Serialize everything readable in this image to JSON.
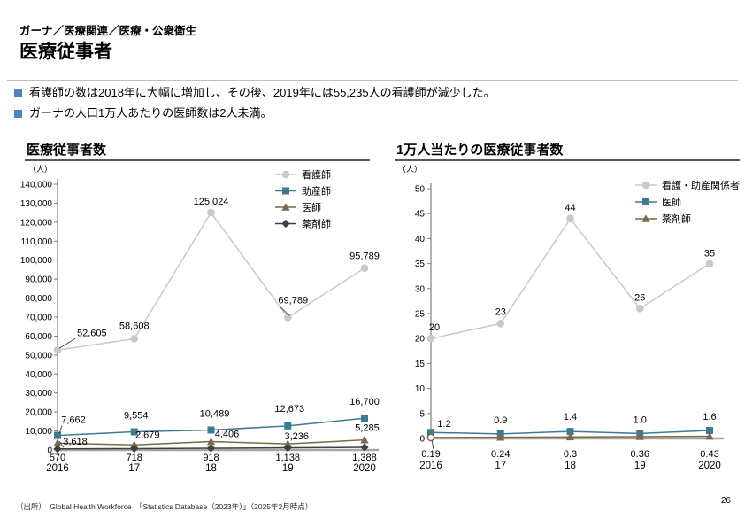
{
  "header": {
    "breadcrumb": "ガーナ／医療関連／医療・公衆衛生",
    "title": "医療従事者"
  },
  "bullets": [
    "看護師の数は2018年に大幅に増加し、その後、2019年には55,235人の看護師が減少した。",
    "ガーナの人口1万人あたりの医師数は2人未満。"
  ],
  "colors": {
    "bullet_square": "#4F81BD",
    "nurse_gray": "#C9C9C9",
    "midwife_teal": "#3D7A94",
    "doctor_olive": "#7A6A45",
    "pharmacist_dark": "#404040",
    "axis_gray": "#A6A6A6"
  },
  "footer": {
    "source": "（出所）　Global Health Workforce　「Statistics Database（2023年）」（2025年2月時点）",
    "page_number": "26"
  },
  "chart_data": [
    {
      "type": "line",
      "title": "医療従事者数",
      "unit_label": "（人）",
      "categories": [
        "2016",
        "17",
        "18",
        "19",
        "2020"
      ],
      "y_axis": {
        "min": 0,
        "max": 140000,
        "step": 10000,
        "grouped": true
      },
      "grid": false,
      "legend_position": "top-right-inside",
      "series": [
        {
          "name": "看護師",
          "color": "#C9C9C9",
          "marker": "circle",
          "values": [
            52605,
            58608,
            125024,
            69789,
            95789
          ],
          "labels": [
            "52,605",
            "58,608",
            "125,024",
            "69,789",
            "95,789"
          ],
          "label_offsets": [
            [
              22,
              -16
            ],
            [
              0,
              -11
            ],
            [
              0,
              -9
            ],
            [
              6,
              -16
            ],
            [
              0,
              -10
            ]
          ],
          "label_anchors": [
            "start",
            "middle",
            "middle",
            "middle",
            "middle"
          ],
          "label_leaders": [
            1,
            0,
            0,
            1,
            0
          ]
        },
        {
          "name": "助産師",
          "color": "#3D7A94",
          "marker": "square",
          "values": [
            7662,
            9554,
            10489,
            12673,
            16700
          ],
          "labels": [
            "7,662",
            "9,554",
            "10,489",
            "12,673",
            "16,700"
          ],
          "label_offsets": [
            [
              18,
              -14
            ],
            [
              2,
              -15
            ],
            [
              4,
              -15
            ],
            [
              2,
              -16
            ],
            [
              0,
              -15
            ]
          ],
          "label_leaders": [
            1,
            0,
            0,
            0,
            0
          ]
        },
        {
          "name": "医師",
          "color": "#7A6A45",
          "marker": "triangle",
          "values": [
            3618,
            2679,
            4406,
            3236,
            5285
          ],
          "labels": [
            "3,618",
            "2,679",
            "4,406",
            "3,236",
            "5,285"
          ],
          "label_offsets": [
            [
              20,
              2
            ],
            [
              15,
              -8
            ],
            [
              18,
              -5
            ],
            [
              10,
              -5
            ],
            [
              3,
              -10
            ]
          ],
          "label_leaders": [
            1,
            0,
            0,
            0,
            0
          ]
        },
        {
          "name": "薬剤師",
          "color": "#404040",
          "marker": "diamond",
          "values": [
            570,
            718,
            918,
            1138,
            1388
          ],
          "labels": [
            "570",
            "718",
            "918",
            "1,138",
            "1,388"
          ],
          "labels_below_axis": true
        }
      ]
    },
    {
      "type": "line",
      "title": "1万人当たりの医療従事者数",
      "unit_label": "（人）",
      "categories": [
        "2016",
        "17",
        "18",
        "19",
        "2020"
      ],
      "y_axis": {
        "min": 0,
        "max": 50,
        "step": 5,
        "grouped": false
      },
      "grid": false,
      "legend_position": "top-right-inside",
      "series": [
        {
          "name": "看護・助産関係者",
          "color": "#C9C9C9",
          "marker": "circle",
          "values": [
            20,
            23,
            44,
            26,
            35
          ],
          "labels": [
            "20",
            "23",
            "44",
            "26",
            "35"
          ],
          "label_offsets": [
            [
              4,
              -9
            ],
            [
              0,
              -10
            ],
            [
              0,
              -9
            ],
            [
              0,
              -9
            ],
            [
              0,
              -8
            ]
          ]
        },
        {
          "name": "医師",
          "color": "#3D7A94",
          "marker": "square",
          "values": [
            1.2,
            0.9,
            1.4,
            1.0,
            1.6
          ],
          "labels": [
            "1.2",
            "0.9",
            "1.4",
            "1.0",
            "1.6"
          ],
          "label_offsets": [
            [
              15,
              -6
            ],
            [
              0,
              -12
            ],
            [
              0,
              -13
            ],
            [
              0,
              -12
            ],
            [
              0,
              -12
            ]
          ],
          "label_leaders": [
            1,
            0,
            0,
            0,
            0
          ]
        },
        {
          "name": "薬剤師",
          "color": "#7A6A45",
          "marker": "triangle",
          "values": [
            0.19,
            0.24,
            0.3,
            0.36,
            0.43
          ],
          "labels": [
            "0.19",
            "0.24",
            "0.3",
            "0.36",
            "0.43"
          ],
          "labels_below_axis": true,
          "label_leaders": [
            1,
            0,
            0,
            0,
            0
          ],
          "marker_overrides": {
            "0": "open-circle"
          }
        }
      ]
    }
  ]
}
